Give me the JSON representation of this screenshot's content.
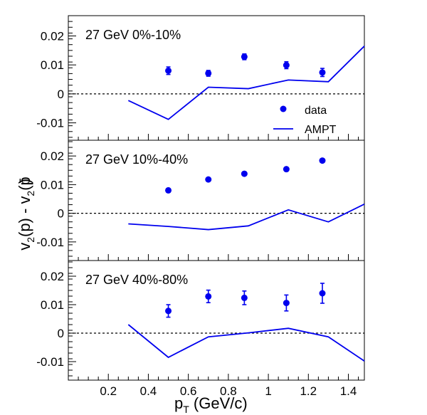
{
  "figure": {
    "ylabel_main": "v",
    "ylabel_parts": [
      "2",
      "(p) - v",
      "2",
      "(p",
      "̄",
      ")"
    ],
    "xlabel_main": "p",
    "xlabel_sub": "T",
    "xlabel_rest": " (GeV/c)"
  },
  "colors": {
    "data": "#0000ee",
    "ampt": "#0000ee",
    "axis": "#000000"
  },
  "chart_data": [
    {
      "type": "scatter",
      "panel_label": "27 GeV 0%-10%",
      "xlim": [
        0,
        1.48
      ],
      "ylim": [
        -0.016,
        0.027
      ],
      "yticks": [
        "0.02",
        "0.01",
        "0",
        "-0.01"
      ],
      "ytick_values": [
        0.02,
        0.01,
        0,
        -0.01
      ],
      "zero_line": true,
      "legend": {
        "placement": "lower-right",
        "entries": [
          {
            "label": "data",
            "marker": "circle"
          },
          {
            "label": "AMPT",
            "marker": "line"
          }
        ]
      },
      "series": [
        {
          "name": "data",
          "kind": "points",
          "x": [
            0.5,
            0.7,
            0.88,
            1.09,
            1.27
          ],
          "y": [
            0.008,
            0.0071,
            0.0128,
            0.0099,
            0.0074
          ],
          "err": [
            0.0013,
            0.001,
            0.001,
            0.0012,
            0.0014
          ]
        },
        {
          "name": "AMPT",
          "kind": "line",
          "x": [
            0.3,
            0.5,
            0.7,
            0.9,
            1.1,
            1.3,
            1.48
          ],
          "y": [
            -0.0023,
            -0.0088,
            0.0023,
            0.0018,
            0.0048,
            0.0042,
            0.0165
          ]
        }
      ]
    },
    {
      "type": "scatter",
      "panel_label": "27 GeV 10%-40%",
      "xlim": [
        0,
        1.48
      ],
      "ylim": [
        -0.0165,
        0.0255
      ],
      "yticks": [
        "0.02",
        "0.01",
        "0",
        "-0.01"
      ],
      "ytick_values": [
        0.02,
        0.01,
        0,
        -0.01
      ],
      "zero_line": true,
      "series": [
        {
          "name": "data",
          "kind": "points",
          "x": [
            0.5,
            0.7,
            0.88,
            1.09,
            1.27
          ],
          "y": [
            0.008,
            0.0118,
            0.0138,
            0.0154,
            0.0184
          ],
          "err": [
            0.0004,
            0.0004,
            0.0004,
            0.0004,
            0.0005
          ]
        },
        {
          "name": "AMPT",
          "kind": "line",
          "x": [
            0.3,
            0.5,
            0.7,
            0.9,
            1.1,
            1.3,
            1.48
          ],
          "y": [
            -0.0037,
            -0.0046,
            -0.0057,
            -0.0044,
            0.0012,
            -0.003,
            0.0032
          ]
        }
      ]
    },
    {
      "type": "scatter",
      "panel_label": "27 GeV 40%-80%",
      "xlim": [
        0,
        1.48
      ],
      "ylim": [
        -0.0165,
        0.0255
      ],
      "yticks": [
        "0.02",
        "0.01",
        "0",
        "-0.01"
      ],
      "ytick_values": [
        0.02,
        0.01,
        0,
        -0.01
      ],
      "xticks": [
        "0.2",
        "0.4",
        "0.6",
        "0.8",
        "1",
        "1.2",
        "1.4"
      ],
      "xtick_values": [
        0.2,
        0.4,
        0.6,
        0.8,
        1.0,
        1.2,
        1.4
      ],
      "zero_line": true,
      "series": [
        {
          "name": "data",
          "kind": "points",
          "x": [
            0.5,
            0.7,
            0.88,
            1.09,
            1.27
          ],
          "y": [
            0.0078,
            0.0129,
            0.0124,
            0.0106,
            0.014
          ],
          "err": [
            0.0022,
            0.0022,
            0.0024,
            0.0028,
            0.0035
          ]
        },
        {
          "name": "AMPT",
          "kind": "line",
          "x": [
            0.3,
            0.5,
            0.7,
            0.9,
            1.1,
            1.3,
            1.48
          ],
          "y": [
            0.003,
            -0.0085,
            -0.0013,
            0.0001,
            0.0017,
            -0.0013,
            -0.0098
          ]
        }
      ]
    }
  ]
}
